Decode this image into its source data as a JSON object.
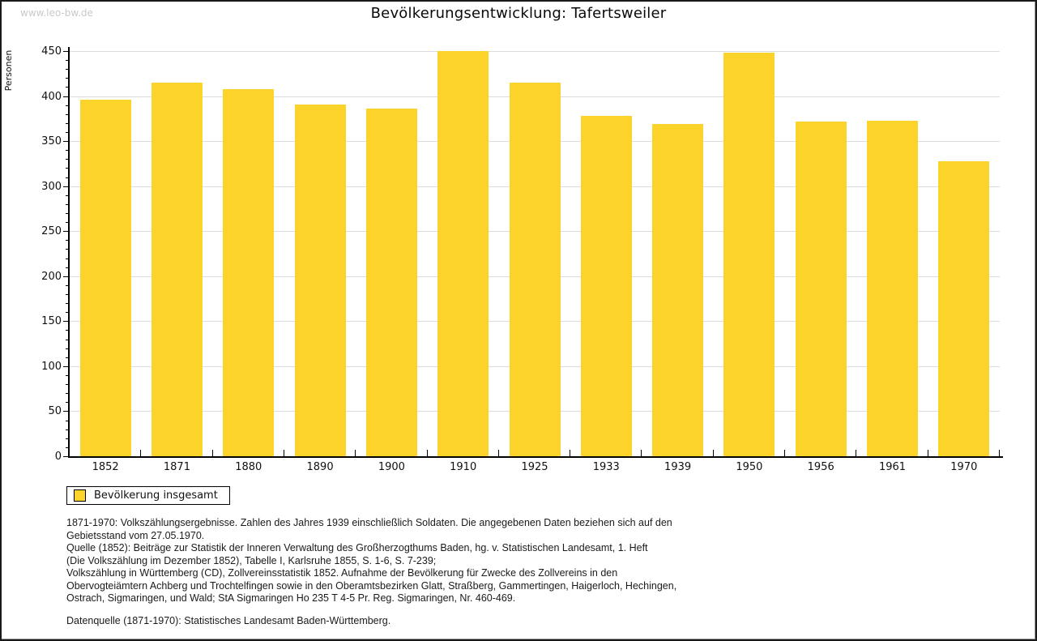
{
  "page": {
    "watermark": "www.leo-bw.de",
    "title": "Bevölkerungsentwicklung: Tafertsweiler"
  },
  "chart_data": {
    "type": "bar",
    "title": "Bevölkerungsentwicklung: Tafertsweiler",
    "xlabel": "",
    "ylabel": "Personen",
    "categories": [
      "1852",
      "1871",
      "1880",
      "1890",
      "1900",
      "1910",
      "1925",
      "1933",
      "1939",
      "1950",
      "1956",
      "1961",
      "1970"
    ],
    "series": [
      {
        "name": "Bevölkerung insgesamt",
        "values": [
          396,
          415,
          408,
          391,
          386,
          450,
          415,
          378,
          369,
          448,
          372,
          373,
          328
        ]
      }
    ],
    "ylim": [
      0,
      450
    ],
    "y_major_step": 50,
    "y_minor_step": 10,
    "grid": true,
    "legend_position": "bottom-left",
    "bar_color": "#fcd32b"
  },
  "legend": {
    "label": "Bevölkerung insgesamt"
  },
  "footnotes": {
    "lines": [
      "1871-1970: Volkszählungsergebnisse. Zahlen des Jahres 1939 einschließlich Soldaten. Die angegebenen Daten beziehen sich auf den",
      "Gebietsstand vom 27.05.1970.",
      "Quelle (1852): Beiträge zur Statistik der Inneren Verwaltung des Großherzogthums Baden, hg. v. Statistischen Landesamt, 1. Heft",
      "(Die Volkszählung im Dezember 1852), Tabelle I, Karlsruhe 1855, S. 1-6, S. 7-239;",
      "Volkszählung in Württemberg (CD), Zollvereinsstatistik 1852. Aufnahme der Bevölkerung für Zwecke des Zollvereins in den",
      "Obervogteiämtern Achberg und Trochtelfingen sowie in den Oberamtsbezirken Glatt, Straßberg, Gammertingen, Haigerloch, Hechingen,",
      "Ostrach, Sigmaringen, und Wald; StA Sigmaringen Ho 235 T 4-5 Pr. Reg. Sigmaringen, Nr. 460-469."
    ],
    "datasource": "Datenquelle (1871-1970): Statistisches Landesamt Baden-Württemberg."
  },
  "colors": {
    "bar": "#fcd32b",
    "grid": "#dcdcdc",
    "axis": "#000000",
    "watermark": "#c9c9c9"
  }
}
